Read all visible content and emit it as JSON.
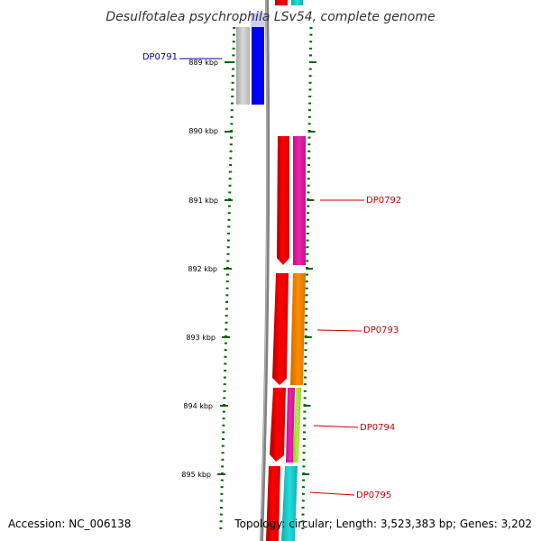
{
  "title": "Desulfotalea psychrophila LSv54, complete genome",
  "accession": "Accession: NC_006138",
  "summary": "Topology: circular; Length: 3,523,383 bp; Genes: 3,202",
  "colors": {
    "backbone": "#808080",
    "ticks": "#006400",
    "label_blue": "#0000aa",
    "label_red": "#cc0000"
  },
  "ticks": [
    {
      "kbp": 889,
      "label": "889 kbp"
    },
    {
      "kbp": 890,
      "label": "890 kbp"
    },
    {
      "kbp": 891,
      "label": "891 kbp"
    },
    {
      "kbp": 892,
      "label": "892 kbp"
    },
    {
      "kbp": 893,
      "label": "893 kbp"
    },
    {
      "kbp": 894,
      "label": "894 kbp"
    },
    {
      "kbp": 895,
      "label": "895 kbp"
    }
  ],
  "gene_labels": [
    {
      "name": "DP0791",
      "color": "#0000aa"
    },
    {
      "name": "DP0792",
      "color": "#cc0000"
    },
    {
      "name": "DP0793",
      "color": "#cc0000"
    },
    {
      "name": "DP0794",
      "color": "#cc0000"
    },
    {
      "name": "DP0795",
      "color": "#cc0000"
    }
  ]
}
